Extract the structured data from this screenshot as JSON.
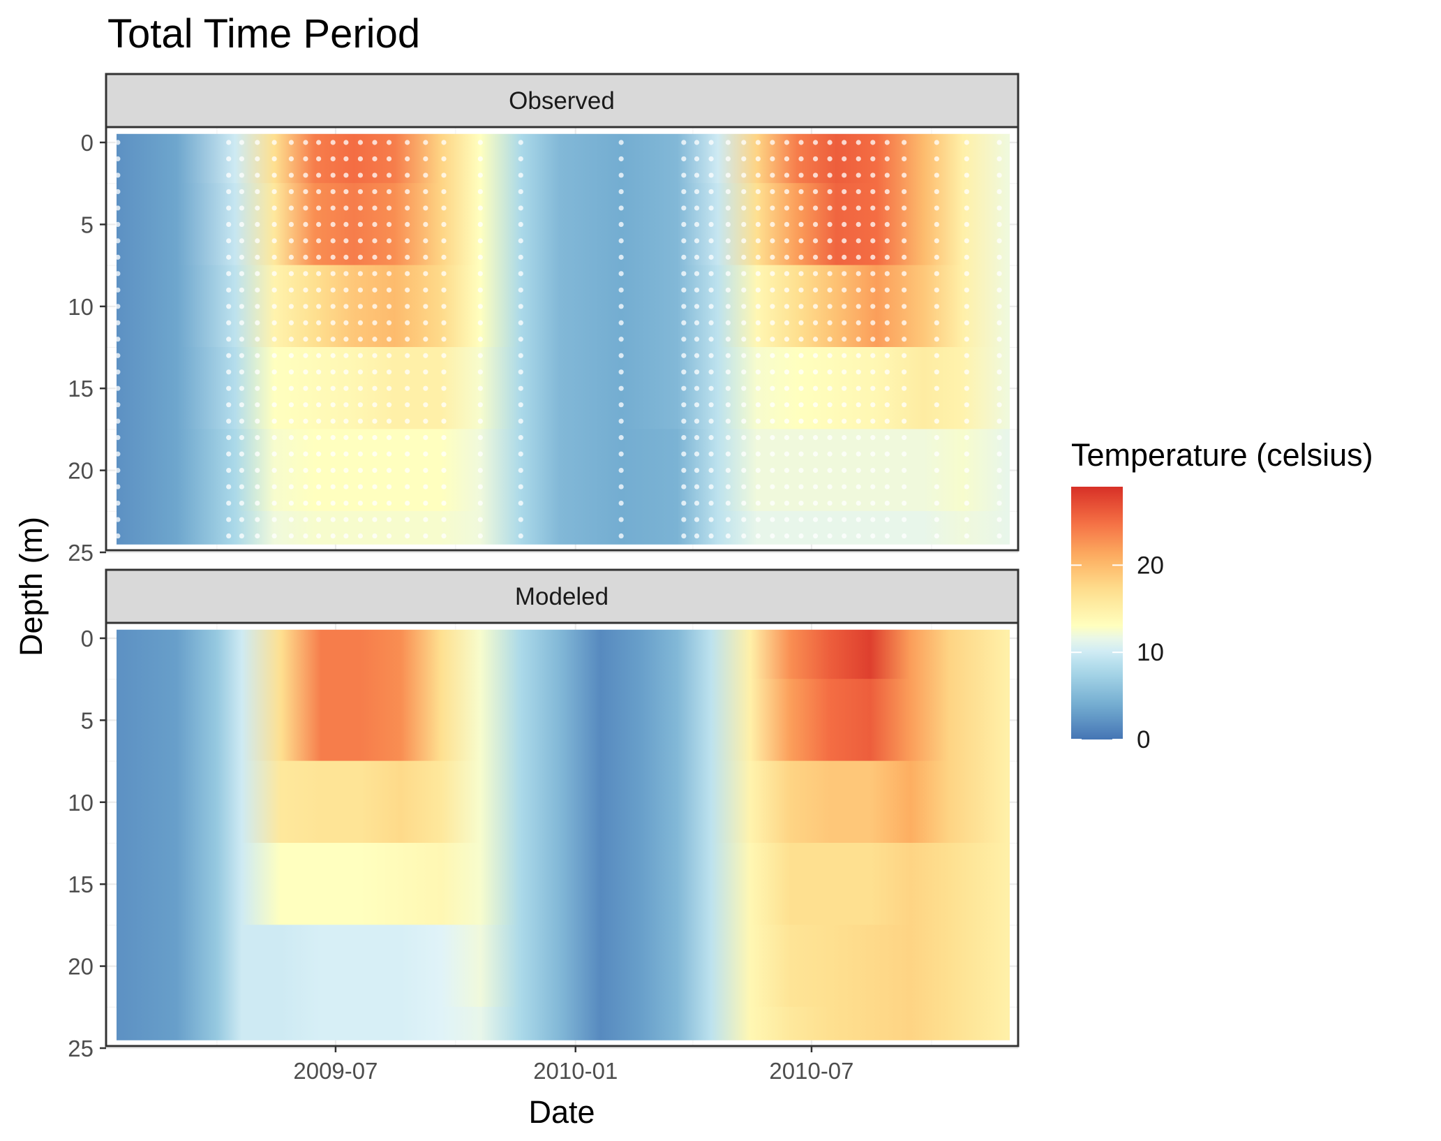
{
  "chart_data": {
    "type": "heatmap",
    "title": "Total Time Period",
    "xlabel": "Date",
    "ylabel": "Depth (m)",
    "x_range": [
      "2009-01-14",
      "2010-11-30"
    ],
    "x_ticks": [
      "2009-07",
      "2010-01",
      "2010-07"
    ],
    "ylim": [
      25,
      0
    ],
    "y_ticks": [
      0,
      5,
      10,
      15,
      20,
      25
    ],
    "y_reversed": true,
    "grid": true,
    "legend": {
      "title": "Temperature (celsius)",
      "position": "right",
      "ticks": [
        0,
        10,
        20
      ],
      "range": [
        0,
        29
      ]
    },
    "colors": {
      "cold": "#4575b4",
      "mid": "#ffffbf",
      "hot": "#d73027",
      "strip_fill": "#d9d9d9",
      "obs_point": "#ffffff"
    },
    "depths": [
      0,
      5,
      10,
      15,
      20,
      25
    ],
    "panels": [
      {
        "name": "Observed",
        "profiles": [
          {
            "date": "2009-01-15",
            "temps": [
              2.0,
              2.0,
              2.0,
              2.0,
              2.0,
              2.0
            ]
          },
          {
            "date": "2009-03-01",
            "temps": [
              3.5,
              3.5,
              3.5,
              3.5,
              3.5,
              3.5
            ]
          },
          {
            "date": "2009-04-15",
            "temps": [
              10.0,
              9.5,
              9.0,
              8.5,
              8.0,
              8.0
            ]
          },
          {
            "date": "2009-05-15",
            "temps": [
              17.0,
              16.0,
              14.5,
              13.0,
              12.5,
              12.0
            ]
          },
          {
            "date": "2009-06-15",
            "temps": [
              24.0,
              23.0,
              17.0,
              13.5,
              13.0,
              12.5
            ]
          },
          {
            "date": "2009-07-15",
            "temps": [
              25.0,
              24.0,
              19.0,
              14.0,
              13.0,
              12.5
            ]
          },
          {
            "date": "2009-08-15",
            "temps": [
              24.0,
              23.0,
              20.0,
              15.0,
              13.0,
              12.5
            ]
          },
          {
            "date": "2009-09-20",
            "temps": [
              18.0,
              18.0,
              17.5,
              15.0,
              13.0,
              12.5
            ]
          },
          {
            "date": "2009-10-20",
            "temps": [
              13.0,
              13.0,
              13.0,
              12.5,
              12.0,
              12.0
            ]
          },
          {
            "date": "2009-11-20",
            "temps": [
              8.0,
              8.0,
              8.0,
              8.0,
              8.0,
              8.0
            ]
          },
          {
            "date": "2009-12-20",
            "temps": [
              5.0,
              5.0,
              5.0,
              5.0,
              5.0,
              5.0
            ]
          },
          {
            "date": "2010-02-05",
            "temps": [
              4.0,
              4.0,
              4.0,
              4.0,
              4.0,
              4.0
            ]
          },
          {
            "date": "2010-03-20",
            "temps": [
              5.0,
              5.0,
              5.0,
              5.0,
              4.5,
              4.5
            ]
          },
          {
            "date": "2010-04-20",
            "temps": [
              10.0,
              9.5,
              9.0,
              9.0,
              9.0,
              9.0
            ]
          },
          {
            "date": "2010-05-20",
            "temps": [
              18.0,
              17.0,
              14.0,
              12.5,
              12.0,
              11.5
            ]
          },
          {
            "date": "2010-06-20",
            "temps": [
              24.0,
              22.0,
              17.0,
              13.0,
              12.0,
              11.5
            ]
          },
          {
            "date": "2010-07-20",
            "temps": [
              26.0,
              25.5,
              19.5,
              13.5,
              12.0,
              11.5
            ]
          },
          {
            "date": "2010-08-20",
            "temps": [
              25.0,
              25.0,
              22.0,
              14.0,
              12.0,
              11.5
            ]
          },
          {
            "date": "2010-09-25",
            "temps": [
              20.0,
              20.0,
              19.0,
              15.5,
              12.0,
              11.5
            ]
          },
          {
            "date": "2010-10-25",
            "temps": [
              15.0,
              15.0,
              15.0,
              14.5,
              12.5,
              12.0
            ]
          },
          {
            "date": "2010-11-28",
            "temps": [
              12.0,
              12.0,
              12.0,
              12.0,
              11.5,
              11.5
            ]
          }
        ],
        "sample_dates": [
          "2009-01-15",
          "2009-04-10",
          "2009-04-20",
          "2009-05-02",
          "2009-05-15",
          "2009-05-28",
          "2009-06-08",
          "2009-06-18",
          "2009-06-29",
          "2009-07-09",
          "2009-07-20",
          "2009-07-31",
          "2009-08-11",
          "2009-08-25",
          "2009-09-08",
          "2009-09-22",
          "2009-10-20",
          "2009-11-20",
          "2010-02-05",
          "2010-03-25",
          "2010-04-04",
          "2010-04-15",
          "2010-04-28",
          "2010-05-10",
          "2010-05-21",
          "2010-06-01",
          "2010-06-12",
          "2010-06-23",
          "2010-07-04",
          "2010-07-15",
          "2010-07-26",
          "2010-08-06",
          "2010-08-17",
          "2010-08-28",
          "2010-09-10",
          "2010-10-05",
          "2010-10-28",
          "2010-11-22"
        ]
      },
      {
        "name": "Modeled",
        "profiles": [
          {
            "date": "2009-01-15",
            "temps": [
              2.0,
              2.0,
              2.0,
              2.0,
              2.0,
              2.0
            ]
          },
          {
            "date": "2009-03-01",
            "temps": [
              3.0,
              3.0,
              3.0,
              3.0,
              3.0,
              3.0
            ]
          },
          {
            "date": "2009-04-01",
            "temps": [
              6.5,
              6.5,
              6.5,
              6.5,
              6.5,
              6.5
            ]
          },
          {
            "date": "2009-04-20",
            "temps": [
              10.0,
              10.0,
              10.0,
              10.0,
              10.0,
              10.0
            ]
          },
          {
            "date": "2009-05-20",
            "temps": [
              17.0,
              17.0,
              16.0,
              13.0,
              10.0,
              10.0
            ]
          },
          {
            "date": "2009-06-20",
            "temps": [
              24.0,
              24.0,
              16.5,
              13.0,
              10.5,
              10.5
            ]
          },
          {
            "date": "2009-07-20",
            "temps": [
              24.0,
              24.0,
              16.5,
              13.0,
              10.5,
              10.5
            ]
          },
          {
            "date": "2009-08-20",
            "temps": [
              23.0,
              23.0,
              17.5,
              13.5,
              10.5,
              10.5
            ]
          },
          {
            "date": "2009-09-20",
            "temps": [
              17.0,
              17.0,
              16.0,
              14.0,
              11.0,
              11.0
            ]
          },
          {
            "date": "2009-10-20",
            "temps": [
              12.5,
              12.5,
              12.5,
              12.5,
              12.0,
              11.5
            ]
          },
          {
            "date": "2009-11-20",
            "temps": [
              8.0,
              8.0,
              8.0,
              8.0,
              8.0,
              8.0
            ]
          },
          {
            "date": "2009-12-20",
            "temps": [
              5.0,
              5.0,
              5.0,
              5.0,
              5.0,
              5.0
            ]
          },
          {
            "date": "2010-01-20",
            "temps": [
              1.5,
              1.5,
              1.5,
              1.5,
              1.5,
              1.5
            ]
          },
          {
            "date": "2010-02-20",
            "temps": [
              3.0,
              3.0,
              3.0,
              3.0,
              3.0,
              3.0
            ]
          },
          {
            "date": "2010-03-20",
            "temps": [
              5.0,
              5.0,
              5.0,
              5.0,
              5.0,
              5.0
            ]
          },
          {
            "date": "2010-04-15",
            "temps": [
              9.0,
              9.0,
              9.0,
              9.0,
              9.0,
              9.0
            ]
          },
          {
            "date": "2010-05-15",
            "temps": [
              15.0,
              15.0,
              14.5,
              14.0,
              14.0,
              14.0
            ]
          },
          {
            "date": "2010-06-15",
            "temps": [
              23.0,
              22.0,
              18.0,
              17.0,
              16.5,
              16.0
            ]
          },
          {
            "date": "2010-07-15",
            "temps": [
              26.0,
              25.0,
              19.0,
              17.0,
              17.0,
              17.0
            ]
          },
          {
            "date": "2010-08-15",
            "temps": [
              28.0,
              26.0,
              19.0,
              17.0,
              17.5,
              17.5
            ]
          },
          {
            "date": "2010-09-15",
            "temps": [
              22.0,
              22.0,
              21.0,
              18.0,
              18.0,
              18.0
            ]
          },
          {
            "date": "2010-10-15",
            "temps": [
              18.0,
              18.0,
              18.0,
              17.0,
              17.0,
              17.0
            ]
          },
          {
            "date": "2010-11-28",
            "temps": [
              15.0,
              15.0,
              15.0,
              15.0,
              15.0,
              15.0
            ]
          }
        ]
      }
    ]
  }
}
